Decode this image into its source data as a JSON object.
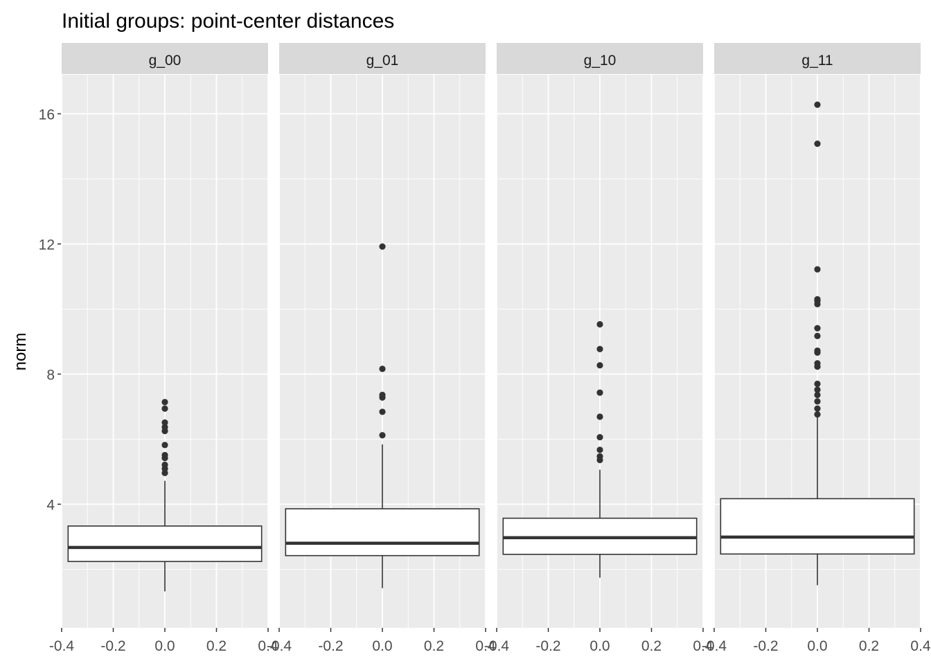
{
  "chart_data": {
    "type": "boxplot",
    "title": "Initial groups: point-center distances",
    "xlabel": "",
    "ylabel": "norm",
    "xlim": [
      -0.4,
      0.4
    ],
    "ylim": [
      0.2,
      17.2
    ],
    "x_ticks": [
      -0.4,
      -0.2,
      0.0,
      0.2,
      0.4
    ],
    "x_tick_labels": [
      "-0.4",
      "-0.2",
      "0.0",
      "0.2",
      "0.4"
    ],
    "y_ticks": [
      4,
      8,
      12,
      16
    ],
    "y_tick_labels": [
      "4",
      "8",
      "12",
      "16"
    ],
    "grid": true,
    "box_x_range": [
      -0.375,
      0.375
    ],
    "facets": [
      {
        "label": "g_00",
        "whisker_low": 1.32,
        "q1": 2.24,
        "median": 2.67,
        "q3": 3.33,
        "whisker_high": 4.72,
        "outliers": [
          4.96,
          5.09,
          5.21,
          5.42,
          5.51,
          5.82,
          6.25,
          6.37,
          6.51,
          6.94,
          7.14
        ]
      },
      {
        "label": "g_01",
        "whisker_low": 1.42,
        "q1": 2.42,
        "median": 2.8,
        "q3": 3.86,
        "whisker_high": 5.84,
        "outliers": [
          6.12,
          6.84,
          7.28,
          7.36,
          8.16,
          11.92
        ]
      },
      {
        "label": "g_10",
        "whisker_low": 1.74,
        "q1": 2.46,
        "median": 2.97,
        "q3": 3.57,
        "whisker_high": 5.06,
        "outliers": [
          5.36,
          5.47,
          5.67,
          6.06,
          6.69,
          7.43,
          8.27,
          8.77,
          9.53
        ]
      },
      {
        "label": "g_11",
        "whisker_low": 1.51,
        "q1": 2.47,
        "median": 2.99,
        "q3": 4.17,
        "whisker_high": 6.68,
        "outliers": [
          6.76,
          6.94,
          7.16,
          7.36,
          7.52,
          7.7,
          8.23,
          8.33,
          8.66,
          8.72,
          9.17,
          9.41,
          10.15,
          10.25,
          10.3,
          11.22,
          15.08,
          16.28
        ]
      }
    ]
  },
  "colors": {
    "panel_bg": "#ebebeb",
    "strip_bg": "#d9d9d9",
    "grid": "#ffffff",
    "box_line": "#333333",
    "box_fill": "#ffffff",
    "tick_text": "#4d4d4d",
    "title_text": "#000000"
  }
}
